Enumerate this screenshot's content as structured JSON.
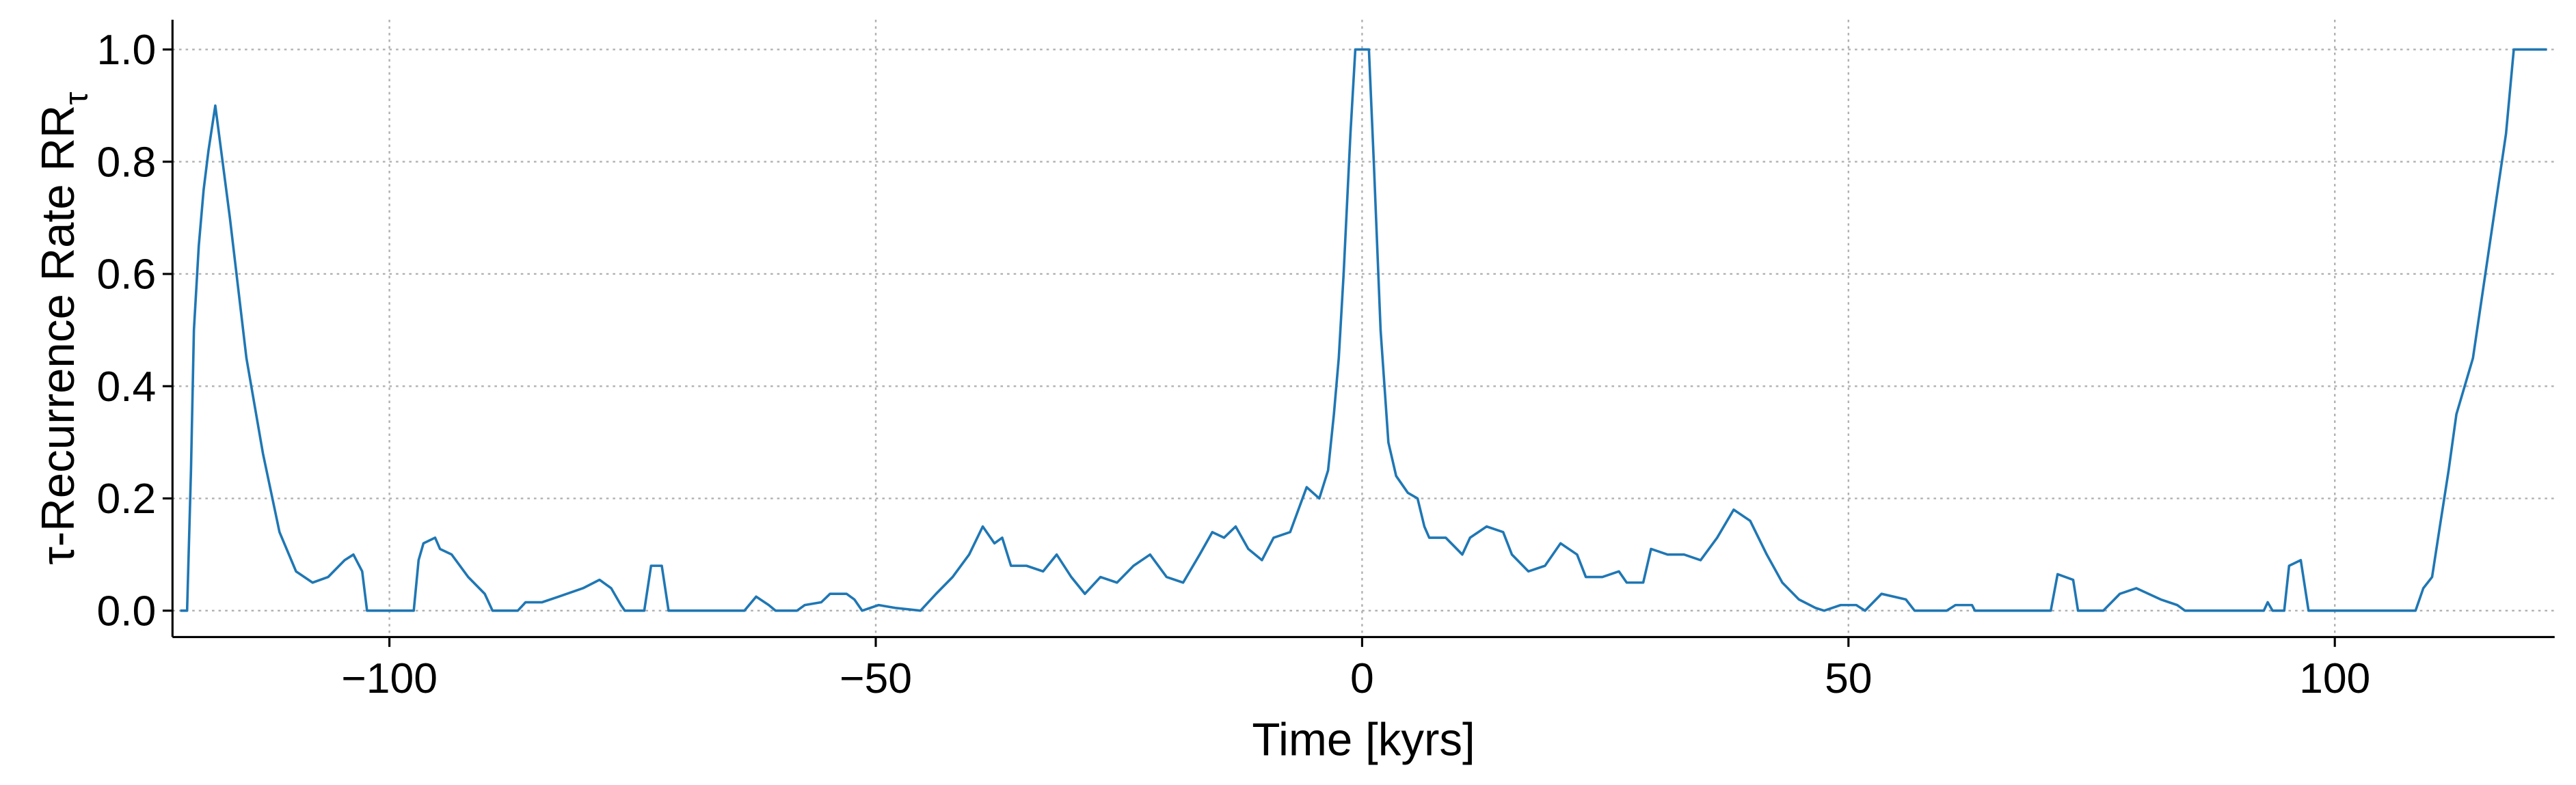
{
  "chart_data": {
    "type": "line",
    "xlabel": "Time [kyrs]",
    "ylabel": "τ-Recurrence Rate RR",
    "ylabel_subscript": "τ",
    "xlim": [
      -122.3,
      122.6
    ],
    "ylim": [
      -0.047,
      1.053
    ],
    "xticks": [
      {
        "value": -100,
        "label": "−100"
      },
      {
        "value": -50,
        "label": "−50"
      },
      0,
      50,
      100
    ],
    "yticks": [
      {
        "value": 0,
        "label": "0.0"
      },
      0.2,
      0.4,
      0.6,
      0.8,
      {
        "value": 1,
        "label": "1.0"
      }
    ],
    "grid": true,
    "series": [
      {
        "name": "RR",
        "color": "#1f77b4",
        "x": [
          -121.5,
          -120.8,
          -120.4,
          -120.1,
          -119.6,
          -119.1,
          -118.6,
          -117.9,
          -116.4,
          -114.7,
          -113.0,
          -111.3,
          -109.6,
          -107.9,
          -106.3,
          -104.6,
          -103.7,
          -102.8,
          -102.3,
          -97.5,
          -97.0,
          -96.5,
          -95.3,
          -94.8,
          -93.6,
          -91.9,
          -90.2,
          -89.4,
          -86.8,
          -86.0,
          -84.3,
          -82.6,
          -80.1,
          -78.4,
          -77.2,
          -76.2,
          -75.8,
          -73.8,
          -73.1,
          -72.0,
          -71.3,
          -63.5,
          -62.3,
          -61.0,
          -60.3,
          -58.1,
          -57.3,
          -55.6,
          -54.7,
          -53.0,
          -52.2,
          -51.4,
          -49.7,
          -48.0,
          -45.4,
          -43.8,
          -42.1,
          -40.4,
          -39.0,
          -37.8,
          -37.0,
          -36.1,
          -34.5,
          -32.8,
          -31.4,
          -29.9,
          -28.5,
          -26.9,
          -25.2,
          -23.5,
          -21.8,
          -20.1,
          -18.4,
          -16.7,
          -15.4,
          -14.2,
          -13.0,
          -11.7,
          -10.3,
          -9.1,
          -7.4,
          -5.7,
          -4.4,
          -3.5,
          -2.9,
          -2.4,
          -1.9,
          -1.2,
          -0.7,
          0.7,
          1.2,
          1.9,
          2.7,
          3.5,
          4.7,
          5.7,
          6.4,
          6.9,
          8.6,
          10.3,
          11.1,
          12.8,
          14.5,
          15.4,
          17.1,
          18.8,
          20.4,
          22.1,
          23.0,
          24.7,
          26.4,
          27.2,
          28.9,
          29.7,
          31.4,
          33.1,
          34.8,
          36.5,
          38.2,
          39.9,
          41.6,
          43.2,
          44.9,
          46.6,
          47.5,
          49.2,
          50.8,
          51.7,
          53.4,
          55.9,
          56.8,
          60.1,
          61.0,
          62.7,
          63.0,
          70.8,
          71.5,
          73.1,
          73.6,
          76.2,
          77.9,
          79.6,
          82.1,
          83.8,
          84.6,
          92.7,
          93.1,
          93.6,
          94.8,
          95.3,
          96.5,
          97.3,
          108.3,
          109.1,
          110.0,
          110.8,
          111.7,
          112.5,
          114.2,
          115.9,
          117.6,
          118.4,
          121.8
        ],
        "values": [
          0,
          0,
          0.25,
          0.5,
          0.65,
          0.75,
          0.82,
          0.9,
          0.7,
          0.45,
          0.28,
          0.14,
          0.07,
          0.05,
          0.06,
          0.09,
          0.1,
          0.07,
          0,
          0,
          0.09,
          0.12,
          0.13,
          0.11,
          0.1,
          0.06,
          0.03,
          0,
          0,
          0.015,
          0.015,
          0.025,
          0.04,
          0.055,
          0.04,
          0.01,
          0,
          0,
          0.08,
          0.08,
          0,
          0,
          0.025,
          0.01,
          0,
          0,
          0.01,
          0.015,
          0.03,
          0.03,
          0.02,
          0,
          0.01,
          0.005,
          0,
          0.03,
          0.06,
          0.1,
          0.15,
          0.12,
          0.13,
          0.08,
          0.08,
          0.07,
          0.1,
          0.06,
          0.03,
          0.06,
          0.05,
          0.08,
          0.1,
          0.06,
          0.05,
          0.1,
          0.14,
          0.13,
          0.15,
          0.11,
          0.09,
          0.13,
          0.14,
          0.22,
          0.2,
          0.25,
          0.35,
          0.45,
          0.6,
          0.85,
          1.0,
          1.0,
          0.8,
          0.5,
          0.3,
          0.24,
          0.21,
          0.2,
          0.15,
          0.13,
          0.13,
          0.1,
          0.13,
          0.15,
          0.14,
          0.1,
          0.07,
          0.08,
          0.12,
          0.1,
          0.06,
          0.06,
          0.07,
          0.05,
          0.05,
          0.11,
          0.1,
          0.1,
          0.09,
          0.13,
          0.18,
          0.16,
          0.1,
          0.05,
          0.02,
          0.005,
          0,
          0.01,
          0.01,
          0,
          0.03,
          0.02,
          0,
          0,
          0.01,
          0.01,
          0,
          0,
          0.065,
          0.055,
          0,
          0,
          0.03,
          0.04,
          0.02,
          0.01,
          0,
          0,
          0.015,
          0,
          0,
          0.08,
          0.09,
          0,
          0,
          0.04,
          0.06,
          0.15,
          0.25,
          0.35,
          0.45,
          0.65,
          0.85,
          1.0,
          1.0
        ]
      }
    ]
  }
}
